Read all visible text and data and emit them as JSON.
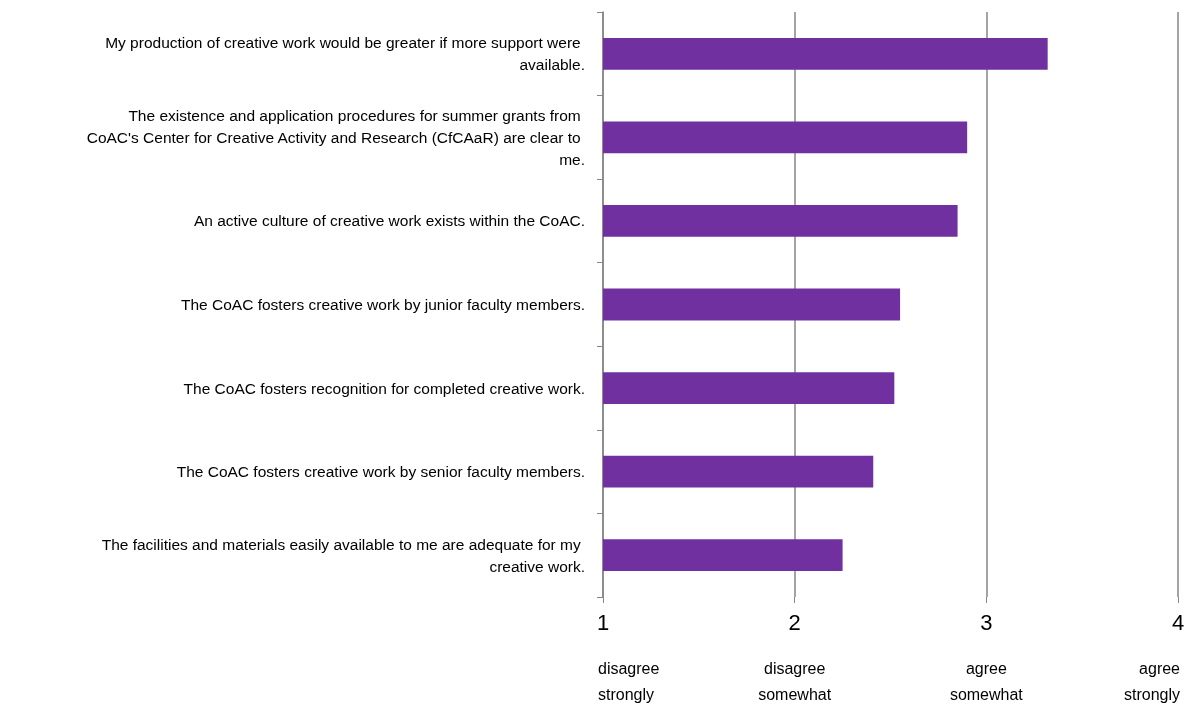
{
  "chart_data": {
    "type": "bar",
    "orientation": "horizontal",
    "categories": [
      "My production of creative work would be greater if more support were available.",
      "The existence and application procedures for summer grants from CoAC's Center for Creative Activity and Research (CfCAaR) are clear to me.",
      "An active culture of creative work exists within the CoAC.",
      "The CoAC fosters creative work by junior faculty members.",
      "The CoAC fosters recognition for completed creative work.",
      "The CoAC fosters creative work by senior faculty members.",
      "The facilities and materials easily available to me are adequate for my creative work."
    ],
    "values": [
      3.32,
      2.9,
      2.85,
      2.55,
      2.52,
      2.41,
      2.25
    ],
    "color": "#7030a0",
    "xlim": [
      1,
      4
    ],
    "xticks": [
      1,
      2,
      3,
      4
    ],
    "grid": "x",
    "annotations": [
      "disagree strongly",
      "disagree somewhat",
      "agree somewhat",
      "agree strongly"
    ]
  }
}
